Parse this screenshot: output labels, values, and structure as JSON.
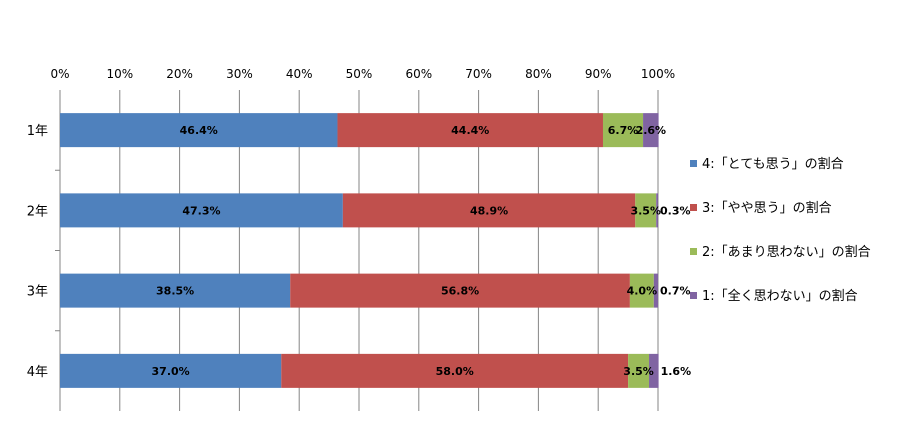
{
  "chart_data": {
    "type": "bar",
    "orientation": "horizontal",
    "stacked": "percent",
    "categories": [
      "1年",
      "2年",
      "3年",
      "4年"
    ],
    "series": [
      {
        "name": "4:「とても思う」の割合",
        "color": "#4F81BD",
        "values": [
          46.4,
          47.3,
          38.5,
          37.0
        ],
        "labels": [
          "46.4%",
          "47.3%",
          "38.5%",
          "37.0%"
        ]
      },
      {
        "name": "3:「やや思う」の割合",
        "color": "#C0504D",
        "values": [
          44.4,
          48.9,
          56.8,
          58.0
        ],
        "labels": [
          "44.4%",
          "48.9%",
          "56.8%",
          "58.0%"
        ]
      },
      {
        "name": "2:「あまり思わない」の割合",
        "color": "#9BBB59",
        "values": [
          6.7,
          3.5,
          4.0,
          3.5
        ],
        "labels": [
          "6.7%",
          "3.5%",
          "4.0%",
          "3.5%"
        ]
      },
      {
        "name": "1:「全く思わない」の割合",
        "color": "#8064A2",
        "values": [
          2.6,
          0.3,
          0.7,
          1.6
        ],
        "labels": [
          "2.6%",
          "0.3%",
          "0.7%",
          "1.6%"
        ]
      }
    ],
    "xlim": [
      0,
      100
    ],
    "xticks": [
      "0%",
      "10%",
      "20%",
      "30%",
      "40%",
      "50%",
      "60%",
      "70%",
      "80%",
      "90%",
      "100%"
    ],
    "grid": true,
    "legend": "right"
  }
}
